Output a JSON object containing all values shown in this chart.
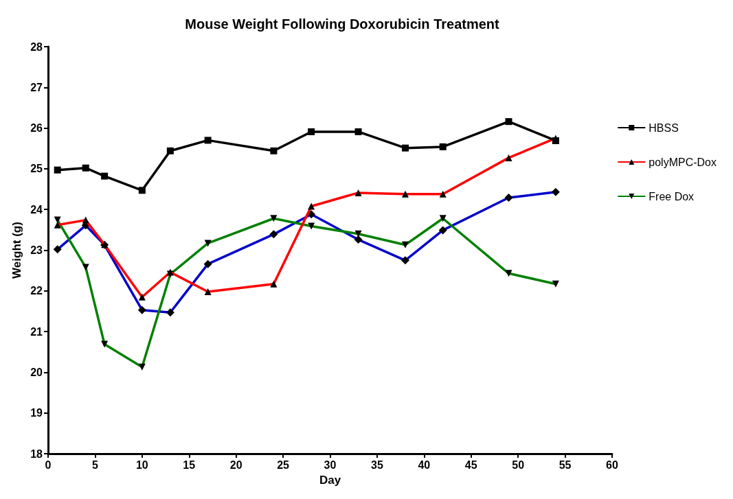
{
  "chart_data": {
    "type": "line",
    "title": "Mouse Weight Following Doxorubicin Treatment",
    "xlabel": "Day",
    "ylabel": "Weight (g)",
    "x": [
      1,
      4,
      6,
      10,
      13,
      17,
      24,
      28,
      33,
      38,
      42,
      49,
      54
    ],
    "series": [
      {
        "name": "HBSS",
        "color": "#000000",
        "marker": "square",
        "values": [
          24.97,
          25.02,
          24.82,
          24.47,
          25.44,
          25.7,
          25.44,
          25.91,
          25.91,
          25.51,
          25.54,
          26.16,
          25.69
        ]
      },
      {
        "name": "polyMPC-Dox",
        "color": "#ff0000",
        "marker": "triangle",
        "values": [
          23.62,
          23.74,
          23.14,
          21.85,
          22.46,
          21.98,
          22.17,
          24.08,
          24.41,
          24.38,
          24.38,
          25.27,
          25.75
        ]
      },
      {
        "name": "Free Dox",
        "color": "#008000",
        "marker": "triangle-down",
        "values": [
          23.74,
          22.58,
          20.69,
          20.13,
          22.41,
          23.17,
          23.78,
          23.59,
          23.4,
          23.13,
          23.78,
          22.43,
          22.17
        ]
      },
      {
        "color": "#0000cc",
        "marker": "diamond",
        "values": [
          23.02,
          23.61,
          23.13,
          21.53,
          21.47,
          22.66,
          23.39,
          23.88,
          23.26,
          22.75,
          23.49,
          24.29,
          24.43
        ]
      }
    ],
    "xlim": [
      0,
      60
    ],
    "xticks": [
      0,
      5,
      10,
      15,
      20,
      25,
      30,
      35,
      40,
      45,
      50,
      55,
      60
    ],
    "ylim": [
      18,
      28
    ],
    "yticks": [
      18,
      19,
      20,
      21,
      22,
      23,
      24,
      25,
      26,
      27,
      28
    ],
    "grid": false,
    "legend": "right",
    "line_style": "solid"
  }
}
